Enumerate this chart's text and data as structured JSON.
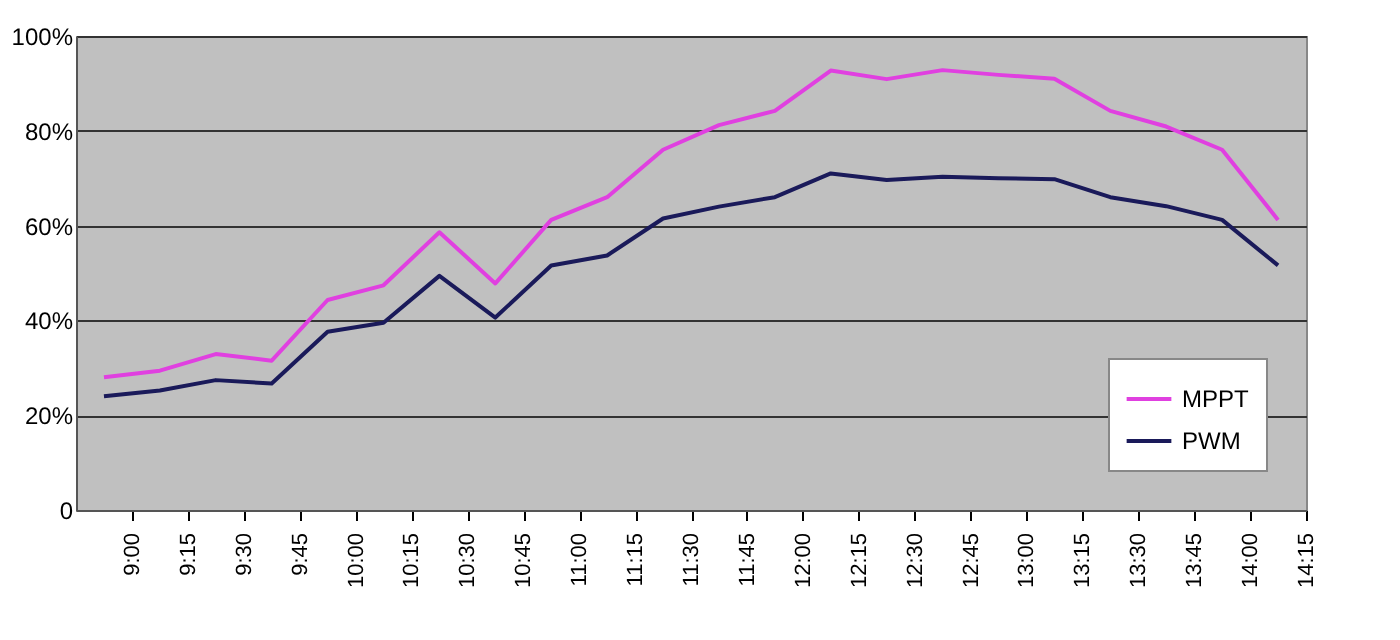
{
  "chart_data": {
    "type": "line",
    "x": [
      8.875,
      9.125,
      9.375,
      9.625,
      9.875,
      10.125,
      10.375,
      10.625,
      10.875,
      11.125,
      11.375,
      11.625,
      11.875,
      12.125,
      12.375,
      12.625,
      12.875,
      13.125,
      13.375,
      13.625,
      13.875,
      14.125
    ],
    "series": [
      {
        "name": "MPPT",
        "color": "#e040e0",
        "values": [
          28,
          29.4,
          32.9,
          31.5,
          44.3,
          47.4,
          58.6,
          47.8,
          61.2,
          66,
          76,
          81.2,
          84.2,
          92.7,
          90.9,
          92.8,
          91.8,
          91,
          84.2,
          80.9,
          76,
          61.2
        ]
      },
      {
        "name": "PWM",
        "color": "#1a1a5a",
        "values": [
          24,
          25.2,
          27.4,
          26.7,
          37.6,
          39.5,
          49.4,
          40.6,
          51.6,
          53.7,
          61.5,
          64,
          66,
          71,
          69.6,
          70.3,
          70,
          69.8,
          66,
          64.1,
          61.2,
          51.6
        ]
      }
    ],
    "xlim": [
      8.75,
      14.25
    ],
    "xticks": [
      {
        "value": 9,
        "label": "9:00"
      },
      {
        "value": 9.25,
        "label": "9:15"
      },
      {
        "value": 9.5,
        "label": "9:30"
      },
      {
        "value": 9.75,
        "label": "9:45"
      },
      {
        "value": 10,
        "label": "10:00"
      },
      {
        "value": 10.25,
        "label": "10:15"
      },
      {
        "value": 10.5,
        "label": "10:30"
      },
      {
        "value": 10.75,
        "label": "10:45"
      },
      {
        "value": 11,
        "label": "11:00"
      },
      {
        "value": 11.25,
        "label": "11:15"
      },
      {
        "value": 11.5,
        "label": "11:30"
      },
      {
        "value": 11.75,
        "label": "11:45"
      },
      {
        "value": 12,
        "label": "12:00"
      },
      {
        "value": 12.25,
        "label": "12:15"
      },
      {
        "value": 12.5,
        "label": "12:30"
      },
      {
        "value": 12.75,
        "label": "12:45"
      },
      {
        "value": 13,
        "label": "13:00"
      },
      {
        "value": 13.25,
        "label": "13:15"
      },
      {
        "value": 13.5,
        "label": "13:30"
      },
      {
        "value": 13.75,
        "label": "13:45"
      },
      {
        "value": 14,
        "label": "14:00"
      },
      {
        "value": 14.25,
        "label": "14:15"
      }
    ],
    "ylim": [
      0,
      100
    ],
    "yticks": [
      0,
      {
        "value": 20,
        "label": "20%"
      },
      {
        "value": 40,
        "label": "40%"
      },
      {
        "value": 60,
        "label": "60%"
      },
      {
        "value": 80,
        "label": "80%"
      },
      {
        "value": 100,
        "label": "100%"
      }
    ],
    "grid": "y",
    "legend": "bottom right",
    "marker": "none",
    "line_style": "solid"
  }
}
